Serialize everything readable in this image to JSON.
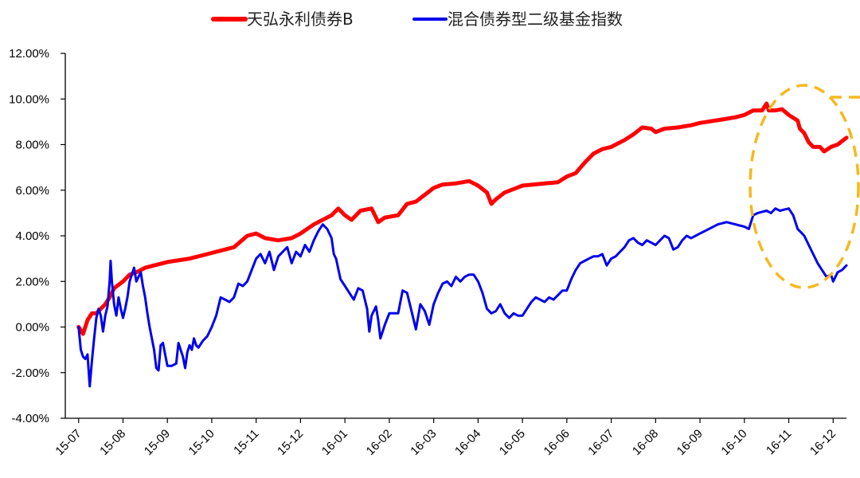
{
  "chart_data": {
    "type": "line",
    "x_categories": [
      "15-07",
      "15-08",
      "15-09",
      "15-10",
      "15-11",
      "15-12",
      "16-01",
      "16-02",
      "16-03",
      "16-04",
      "16-05",
      "16-06",
      "16-07",
      "16-08",
      "16-09",
      "16-10",
      "16-11",
      "16-12"
    ],
    "y_ticks": [
      "12.00%",
      "10.00%",
      "8.00%",
      "6.00%",
      "4.00%",
      "2.00%",
      "0.00%",
      "-2.00%",
      "-4.00%"
    ],
    "ylim": [
      -4,
      12
    ],
    "legend_position": "top",
    "series": [
      {
        "name": "天弘永利债券B",
        "color": "#ff0000",
        "points": [
          [
            0,
            0
          ],
          [
            0.1,
            -0.3
          ],
          [
            0.2,
            0.3
          ],
          [
            0.3,
            0.6
          ],
          [
            0.4,
            0.6
          ],
          [
            0.5,
            0.8
          ],
          [
            0.6,
            1.0
          ],
          [
            0.7,
            1.3
          ],
          [
            0.8,
            1.7
          ],
          [
            1.0,
            2.0
          ],
          [
            1.15,
            2.3
          ],
          [
            1.3,
            2.4
          ],
          [
            1.5,
            2.6
          ],
          [
            2.0,
            2.85
          ],
          [
            2.5,
            3.0
          ],
          [
            3.0,
            3.25
          ],
          [
            3.5,
            3.5
          ],
          [
            3.8,
            4.0
          ],
          [
            4.0,
            4.1
          ],
          [
            4.2,
            3.9
          ],
          [
            4.5,
            3.8
          ],
          [
            4.8,
            3.9
          ],
          [
            5.0,
            4.1
          ],
          [
            5.3,
            4.5
          ],
          [
            5.7,
            4.9
          ],
          [
            5.85,
            5.2
          ],
          [
            6.0,
            4.9
          ],
          [
            6.15,
            4.7
          ],
          [
            6.35,
            5.1
          ],
          [
            6.6,
            5.2
          ],
          [
            6.75,
            4.6
          ],
          [
            6.9,
            4.8
          ],
          [
            7.2,
            4.9
          ],
          [
            7.4,
            5.4
          ],
          [
            7.6,
            5.5
          ],
          [
            7.8,
            5.8
          ],
          [
            8.0,
            6.1
          ],
          [
            8.2,
            6.25
          ],
          [
            8.5,
            6.3
          ],
          [
            8.8,
            6.4
          ],
          [
            9.0,
            6.2
          ],
          [
            9.2,
            5.9
          ],
          [
            9.3,
            5.4
          ],
          [
            9.4,
            5.6
          ],
          [
            9.6,
            5.9
          ],
          [
            9.8,
            6.05
          ],
          [
            10.0,
            6.2
          ],
          [
            10.5,
            6.3
          ],
          [
            10.8,
            6.35
          ],
          [
            11.0,
            6.6
          ],
          [
            11.2,
            6.75
          ],
          [
            11.4,
            7.2
          ],
          [
            11.6,
            7.6
          ],
          [
            11.8,
            7.8
          ],
          [
            12.0,
            7.9
          ],
          [
            12.3,
            8.2
          ],
          [
            12.5,
            8.45
          ],
          [
            12.7,
            8.75
          ],
          [
            12.9,
            8.7
          ],
          [
            13.0,
            8.55
          ],
          [
            13.2,
            8.7
          ],
          [
            13.5,
            8.75
          ],
          [
            13.8,
            8.85
          ],
          [
            14.0,
            8.95
          ],
          [
            14.5,
            9.1
          ],
          [
            14.8,
            9.2
          ],
          [
            15.0,
            9.3
          ],
          [
            15.2,
            9.5
          ],
          [
            15.4,
            9.5
          ],
          [
            15.5,
            9.8
          ],
          [
            15.55,
            9.5
          ],
          [
            15.7,
            9.5
          ],
          [
            15.85,
            9.55
          ],
          [
            16.0,
            9.3
          ],
          [
            16.2,
            9.05
          ],
          [
            16.25,
            8.7
          ],
          [
            16.35,
            8.5
          ],
          [
            16.45,
            8.1
          ],
          [
            16.55,
            7.9
          ],
          [
            16.7,
            7.9
          ],
          [
            16.8,
            7.7
          ],
          [
            16.95,
            7.9
          ],
          [
            17.1,
            8.0
          ],
          [
            17.3,
            8.3
          ]
        ]
      },
      {
        "name": "混合债券型二级基金指数",
        "color": "#0000ee",
        "points": [
          [
            0,
            0
          ],
          [
            0.05,
            -1.0
          ],
          [
            0.1,
            -1.3
          ],
          [
            0.15,
            -1.4
          ],
          [
            0.2,
            -1.2
          ],
          [
            0.25,
            -2.6
          ],
          [
            0.3,
            -1.5
          ],
          [
            0.35,
            -0.5
          ],
          [
            0.4,
            0.4
          ],
          [
            0.45,
            0.8
          ],
          [
            0.5,
            0.5
          ],
          [
            0.55,
            -0.2
          ],
          [
            0.6,
            0.5
          ],
          [
            0.65,
            0.9
          ],
          [
            0.7,
            2.0
          ],
          [
            0.72,
            2.9
          ],
          [
            0.75,
            2.0
          ],
          [
            0.8,
            1.0
          ],
          [
            0.85,
            0.5
          ],
          [
            0.9,
            1.3
          ],
          [
            0.95,
            0.8
          ],
          [
            1.0,
            0.4
          ],
          [
            1.05,
            0.8
          ],
          [
            1.1,
            1.3
          ],
          [
            1.15,
            2.0
          ],
          [
            1.2,
            2.3
          ],
          [
            1.25,
            2.6
          ],
          [
            1.3,
            2.0
          ],
          [
            1.35,
            2.2
          ],
          [
            1.4,
            2.4
          ],
          [
            1.45,
            1.8
          ],
          [
            1.5,
            1.3
          ],
          [
            1.55,
            0.6
          ],
          [
            1.6,
            0.0
          ],
          [
            1.65,
            -0.5
          ],
          [
            1.7,
            -1.0
          ],
          [
            1.75,
            -1.8
          ],
          [
            1.8,
            -1.9
          ],
          [
            1.85,
            -0.8
          ],
          [
            1.9,
            -0.7
          ],
          [
            1.95,
            -1.2
          ],
          [
            2.0,
            -1.7
          ],
          [
            2.1,
            -1.7
          ],
          [
            2.2,
            -1.6
          ],
          [
            2.25,
            -0.7
          ],
          [
            2.3,
            -1.0
          ],
          [
            2.35,
            -1.3
          ],
          [
            2.4,
            -1.8
          ],
          [
            2.45,
            -1.1
          ],
          [
            2.5,
            -0.8
          ],
          [
            2.55,
            -1.0
          ],
          [
            2.6,
            -0.5
          ],
          [
            2.65,
            -0.8
          ],
          [
            2.7,
            -0.9
          ],
          [
            2.8,
            -0.6
          ],
          [
            2.9,
            -0.4
          ],
          [
            3.0,
            0.0
          ],
          [
            3.1,
            0.5
          ],
          [
            3.2,
            1.3
          ],
          [
            3.3,
            1.2
          ],
          [
            3.4,
            1.1
          ],
          [
            3.5,
            1.3
          ],
          [
            3.6,
            1.9
          ],
          [
            3.7,
            1.8
          ],
          [
            3.8,
            2.0
          ],
          [
            3.9,
            2.5
          ],
          [
            4.0,
            3.0
          ],
          [
            4.1,
            3.2
          ],
          [
            4.2,
            2.8
          ],
          [
            4.3,
            3.3
          ],
          [
            4.4,
            2.5
          ],
          [
            4.5,
            3.1
          ],
          [
            4.6,
            3.3
          ],
          [
            4.7,
            3.5
          ],
          [
            4.8,
            2.8
          ],
          [
            4.9,
            3.3
          ],
          [
            5.0,
            3.1
          ],
          [
            5.1,
            3.6
          ],
          [
            5.2,
            3.3
          ],
          [
            5.3,
            3.8
          ],
          [
            5.4,
            4.2
          ],
          [
            5.5,
            4.5
          ],
          [
            5.6,
            4.3
          ],
          [
            5.7,
            3.9
          ],
          [
            5.75,
            3.2
          ],
          [
            5.8,
            3.0
          ],
          [
            5.9,
            2.1
          ],
          [
            6.0,
            1.8
          ],
          [
            6.1,
            1.5
          ],
          [
            6.2,
            1.2
          ],
          [
            6.3,
            1.7
          ],
          [
            6.4,
            1.6
          ],
          [
            6.5,
            0.8
          ],
          [
            6.55,
            -0.2
          ],
          [
            6.6,
            0.5
          ],
          [
            6.7,
            0.9
          ],
          [
            6.75,
            0.3
          ],
          [
            6.8,
            -0.5
          ],
          [
            6.9,
            0.1
          ],
          [
            7.0,
            0.6
          ],
          [
            7.2,
            0.6
          ],
          [
            7.3,
            1.6
          ],
          [
            7.4,
            1.5
          ],
          [
            7.5,
            0.7
          ],
          [
            7.6,
            -0.1
          ],
          [
            7.7,
            1.0
          ],
          [
            7.8,
            0.7
          ],
          [
            7.9,
            0.1
          ],
          [
            8.0,
            1.0
          ],
          [
            8.1,
            1.5
          ],
          [
            8.2,
            1.9
          ],
          [
            8.3,
            2.0
          ],
          [
            8.4,
            1.8
          ],
          [
            8.5,
            2.2
          ],
          [
            8.6,
            2.0
          ],
          [
            8.7,
            2.2
          ],
          [
            8.8,
            2.3
          ],
          [
            8.9,
            2.3
          ],
          [
            9.0,
            2.0
          ],
          [
            9.1,
            1.5
          ],
          [
            9.2,
            0.8
          ],
          [
            9.3,
            0.6
          ],
          [
            9.4,
            0.7
          ],
          [
            9.5,
            1.0
          ],
          [
            9.6,
            0.6
          ],
          [
            9.7,
            0.4
          ],
          [
            9.8,
            0.6
          ],
          [
            9.9,
            0.5
          ],
          [
            10.0,
            0.5
          ],
          [
            10.1,
            0.8
          ],
          [
            10.2,
            1.1
          ],
          [
            10.3,
            1.3
          ],
          [
            10.4,
            1.2
          ],
          [
            10.5,
            1.1
          ],
          [
            10.6,
            1.3
          ],
          [
            10.7,
            1.2
          ],
          [
            10.8,
            1.4
          ],
          [
            10.9,
            1.6
          ],
          [
            11.0,
            1.6
          ],
          [
            11.1,
            2.1
          ],
          [
            11.2,
            2.5
          ],
          [
            11.3,
            2.8
          ],
          [
            11.4,
            2.9
          ],
          [
            11.5,
            3.0
          ],
          [
            11.6,
            3.1
          ],
          [
            11.7,
            3.1
          ],
          [
            11.8,
            3.2
          ],
          [
            11.9,
            2.7
          ],
          [
            12.0,
            3.0
          ],
          [
            12.1,
            3.1
          ],
          [
            12.2,
            3.3
          ],
          [
            12.3,
            3.5
          ],
          [
            12.4,
            3.8
          ],
          [
            12.5,
            3.9
          ],
          [
            12.6,
            3.7
          ],
          [
            12.7,
            3.6
          ],
          [
            12.8,
            3.8
          ],
          [
            12.9,
            3.7
          ],
          [
            13.0,
            3.6
          ],
          [
            13.1,
            3.8
          ],
          [
            13.2,
            4.0
          ],
          [
            13.3,
            3.9
          ],
          [
            13.4,
            3.4
          ],
          [
            13.5,
            3.5
          ],
          [
            13.6,
            3.8
          ],
          [
            13.7,
            4.0
          ],
          [
            13.8,
            3.9
          ],
          [
            13.9,
            4.0
          ],
          [
            14.0,
            4.1
          ],
          [
            14.2,
            4.3
          ],
          [
            14.4,
            4.5
          ],
          [
            14.6,
            4.6
          ],
          [
            14.8,
            4.5
          ],
          [
            15.0,
            4.4
          ],
          [
            15.1,
            4.3
          ],
          [
            15.2,
            4.9
          ],
          [
            15.3,
            5.0
          ],
          [
            15.4,
            5.05
          ],
          [
            15.5,
            5.1
          ],
          [
            15.6,
            5.0
          ],
          [
            15.7,
            5.2
          ],
          [
            15.8,
            5.1
          ],
          [
            15.9,
            5.15
          ],
          [
            16.0,
            5.2
          ],
          [
            16.1,
            4.9
          ],
          [
            16.2,
            4.3
          ],
          [
            16.3,
            4.1
          ],
          [
            16.35,
            4.0
          ],
          [
            16.45,
            3.6
          ],
          [
            16.55,
            3.2
          ],
          [
            16.65,
            2.8
          ],
          [
            16.75,
            2.5
          ],
          [
            16.85,
            2.2
          ],
          [
            16.95,
            2.3
          ],
          [
            17.0,
            2.0
          ],
          [
            17.1,
            2.4
          ],
          [
            17.2,
            2.5
          ],
          [
            17.3,
            2.7
          ]
        ]
      }
    ]
  }
}
